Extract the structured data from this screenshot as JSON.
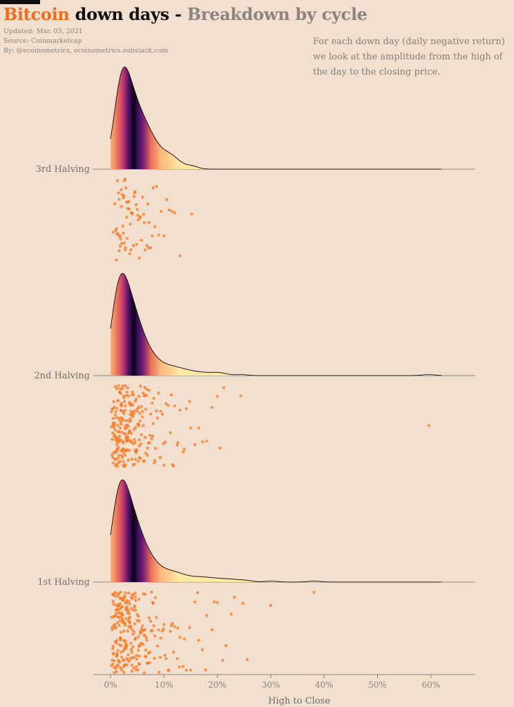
{
  "header": {
    "title_part1": "Bitcoin",
    "title_part2": "down days -",
    "title_part3": "Breakdown by cycle",
    "updated": "Updated: Mar. 03, 2021",
    "source": "Source: Coinmarketcap",
    "by": "By: @ecoinometrics, ecoinometrics.substack.com",
    "description": [
      "For each down day (daily negative return)",
      "we look at the amplitude from the high of",
      "the day to the closing price."
    ]
  },
  "colors": {
    "accent": "#f46a1b",
    "background": "#f2dfcd",
    "point": "#f77a26",
    "gradient": [
      "#fde9a4",
      "#fcb97a",
      "#f07850",
      "#c64468",
      "#7c2274",
      "#3d1160",
      "#0b0620"
    ]
  },
  "chart_data": {
    "type": "ridgeline-with-jitter",
    "xlabel": "High to Close",
    "xlim": [
      -3,
      68
    ],
    "x_ticks": [
      0,
      10,
      20,
      30,
      40,
      50,
      60
    ],
    "x_tick_labels": [
      "0%",
      "10%",
      "20%",
      "30%",
      "40%",
      "50%",
      "60%"
    ],
    "density_bandwidth_pct": 1.2,
    "series": [
      {
        "name": "3rd Halving",
        "density_range": [
          0,
          62
        ],
        "points": [
          0.5,
          0.8,
          1.0,
          1.1,
          1.2,
          1.4,
          1.5,
          1.6,
          1.7,
          1.8,
          1.9,
          2.0,
          2.1,
          2.2,
          2.3,
          2.4,
          2.5,
          2.6,
          2.7,
          2.8,
          2.9,
          3.0,
          3.1,
          3.2,
          3.3,
          3.5,
          3.6,
          3.8,
          4.0,
          4.1,
          4.3,
          4.5,
          4.6,
          4.8,
          5.0,
          5.2,
          5.4,
          5.6,
          5.8,
          6.0,
          6.2,
          6.5,
          6.8,
          7.0,
          7.2,
          7.5,
          7.8,
          8.0,
          8.3,
          8.6,
          9.0,
          9.5,
          10.0,
          10.5,
          11.0,
          11.5,
          12.0,
          13.0,
          15.2,
          1.3,
          1.6,
          2.0,
          2.4,
          2.7,
          3.0,
          3.4,
          3.9,
          4.4,
          4.9,
          5.5,
          6.3,
          7.1,
          1.1,
          1.8,
          2.6,
          3.7,
          5.1
        ]
      },
      {
        "name": "2nd Halving",
        "density_range": [
          0,
          62
        ],
        "points": [
          0.2,
          0.3,
          0.4,
          0.5,
          0.5,
          0.6,
          0.7,
          0.8,
          0.8,
          0.9,
          1.0,
          1.0,
          1.1,
          1.1,
          1.2,
          1.2,
          1.3,
          1.3,
          1.4,
          1.4,
          1.5,
          1.5,
          1.6,
          1.6,
          1.7,
          1.7,
          1.8,
          1.8,
          1.9,
          1.9,
          2.0,
          2.0,
          2.1,
          2.1,
          2.2,
          2.2,
          2.3,
          2.3,
          2.4,
          2.4,
          2.5,
          2.5,
          2.6,
          2.6,
          2.7,
          2.7,
          2.8,
          2.8,
          2.9,
          2.9,
          3.0,
          3.0,
          3.1,
          3.2,
          3.3,
          3.3,
          3.4,
          3.5,
          3.6,
          3.6,
          3.7,
          3.8,
          3.9,
          4.0,
          4.0,
          4.1,
          4.2,
          4.3,
          4.4,
          4.5,
          4.6,
          4.7,
          4.8,
          4.9,
          5.0,
          5.1,
          5.2,
          5.3,
          5.4,
          5.5,
          5.6,
          5.8,
          6.0,
          6.1,
          6.3,
          6.5,
          6.7,
          6.9,
          7.1,
          7.3,
          7.5,
          7.8,
          8.0,
          8.3,
          8.6,
          9.0,
          9.3,
          9.7,
          10.0,
          10.4,
          10.8,
          11.2,
          11.6,
          12.0,
          12.5,
          13.0,
          13.6,
          14.2,
          15.0,
          15.8,
          16.5,
          17.2,
          18.0,
          19.0,
          20.0,
          20.5,
          21.2,
          24.4,
          59.6,
          0.6,
          0.9,
          1.3,
          1.7,
          2.1,
          2.5,
          2.9,
          3.4,
          3.9,
          4.5,
          5.2,
          6.2,
          7.4,
          8.8,
          0.4,
          0.7,
          1.2,
          1.6,
          2.0,
          2.4,
          2.8,
          3.2,
          3.7,
          4.2,
          4.8,
          5.6,
          6.6,
          8.2,
          9.9,
          11.8,
          13.8,
          0.5,
          1.0,
          1.4,
          1.9,
          2.3,
          2.7,
          3.1,
          3.6,
          4.1,
          4.7,
          5.4,
          6.4,
          7.7,
          0.3,
          0.8,
          1.2,
          1.5,
          1.8,
          2.2,
          2.6,
          3.0,
          3.5,
          4.0,
          4.6,
          5.3,
          6.0,
          6.9,
          8.4,
          10.2,
          12.6,
          14.8,
          0.6,
          1.1,
          1.5,
          2.0,
          2.5,
          3.1,
          3.8,
          4.4,
          5.2,
          6.1,
          7.2,
          0.2,
          0.7,
          1.0,
          1.4,
          1.8,
          2.1,
          2.4,
          2.8,
          3.2,
          3.6,
          4.1,
          4.7,
          5.5,
          6.5,
          7.9,
          9.4,
          11.4,
          0.4,
          0.9,
          1.3,
          1.7,
          2.2,
          2.6,
          3.0,
          3.5,
          4.0,
          4.6,
          5.4,
          6.3,
          0.5,
          0.8,
          1.1,
          1.6,
          2.0,
          2.3,
          2.7,
          3.3,
          3.9,
          4.3,
          5.0,
          5.8,
          6.8,
          8.1,
          0.3,
          0.6,
          1.0,
          1.5,
          1.9,
          2.4,
          2.9,
          3.4,
          4.2,
          4.9,
          5.7,
          6.6,
          0.9,
          1.4,
          1.9,
          2.5,
          3.1,
          3.7,
          4.5,
          5.3
        ]
      },
      {
        "name": "1st Halving",
        "density_range": [
          0,
          62
        ],
        "points": [
          0.2,
          0.3,
          0.4,
          0.5,
          0.5,
          0.6,
          0.7,
          0.8,
          0.8,
          0.9,
          1.0,
          1.0,
          1.1,
          1.1,
          1.2,
          1.2,
          1.3,
          1.3,
          1.4,
          1.4,
          1.5,
          1.5,
          1.6,
          1.6,
          1.7,
          1.7,
          1.8,
          1.8,
          1.9,
          1.9,
          2.0,
          2.0,
          2.1,
          2.1,
          2.2,
          2.2,
          2.3,
          2.3,
          2.4,
          2.4,
          2.5,
          2.5,
          2.6,
          2.6,
          2.7,
          2.7,
          2.8,
          2.8,
          2.9,
          2.9,
          3.0,
          3.0,
          3.1,
          3.2,
          3.3,
          3.3,
          3.4,
          3.5,
          3.6,
          3.6,
          3.7,
          3.8,
          3.9,
          4.0,
          4.0,
          4.1,
          4.2,
          4.3,
          4.4,
          4.5,
          4.6,
          4.7,
          4.8,
          4.9,
          5.0,
          5.1,
          5.2,
          5.3,
          5.4,
          5.5,
          5.6,
          5.8,
          6.0,
          6.1,
          6.3,
          6.5,
          6.7,
          6.9,
          7.1,
          7.3,
          7.5,
          7.8,
          8.0,
          8.3,
          8.6,
          9.0,
          9.3,
          9.7,
          10.0,
          10.4,
          10.8,
          11.2,
          11.6,
          12.0,
          12.5,
          13.0,
          13.6,
          14.2,
          15.0,
          15.8,
          16.5,
          17.2,
          18.0,
          19.0,
          20.0,
          21.0,
          22.6,
          23.2,
          24.8,
          25.6,
          30.0,
          38.1,
          0.6,
          0.9,
          1.3,
          1.7,
          2.1,
          2.5,
          2.9,
          3.4,
          3.9,
          4.5,
          5.2,
          6.2,
          7.4,
          8.8,
          0.4,
          0.7,
          1.2,
          1.6,
          2.0,
          2.4,
          2.8,
          3.2,
          3.7,
          4.2,
          4.8,
          5.6,
          6.6,
          8.2,
          9.9,
          11.8,
          13.8,
          0.5,
          1.0,
          1.4,
          1.9,
          2.3,
          2.7,
          3.1,
          3.6,
          4.1,
          4.7,
          5.4,
          6.4,
          7.7,
          0.3,
          0.8,
          1.2,
          1.5,
          1.8,
          2.2,
          2.6,
          3.0,
          3.5,
          4.0,
          4.6,
          5.3,
          6.0,
          6.9,
          8.4,
          10.2,
          12.6,
          14.8,
          0.6,
          1.1,
          1.5,
          2.0,
          2.5,
          3.1,
          3.8,
          4.4,
          5.2,
          6.1,
          7.2,
          0.2,
          0.7,
          1.0,
          1.4,
          1.8,
          2.1,
          2.4,
          2.8,
          3.2,
          3.6,
          4.1,
          4.7,
          5.5,
          6.5,
          7.9,
          9.4,
          11.4,
          0.4,
          0.9,
          1.3,
          1.7,
          2.2,
          2.6,
          3.0,
          3.5,
          4.0,
          4.6,
          5.4,
          6.3,
          0.5,
          0.8,
          1.1,
          1.6,
          2.0,
          2.3,
          2.7,
          3.3,
          3.9,
          4.3,
          5.0,
          5.8,
          6.8,
          8.1,
          0.3,
          0.6,
          1.0,
          1.5,
          1.9,
          2.4,
          2.9,
          3.4,
          4.2,
          4.9,
          5.7,
          6.6,
          0.9,
          1.4,
          1.9,
          2.5,
          3.1,
          3.7,
          4.5,
          5.3,
          6.4,
          7.6,
          9.1,
          10.9,
          12.9,
          16.3,
          17.8,
          19.4,
          21.6
        ]
      }
    ]
  }
}
